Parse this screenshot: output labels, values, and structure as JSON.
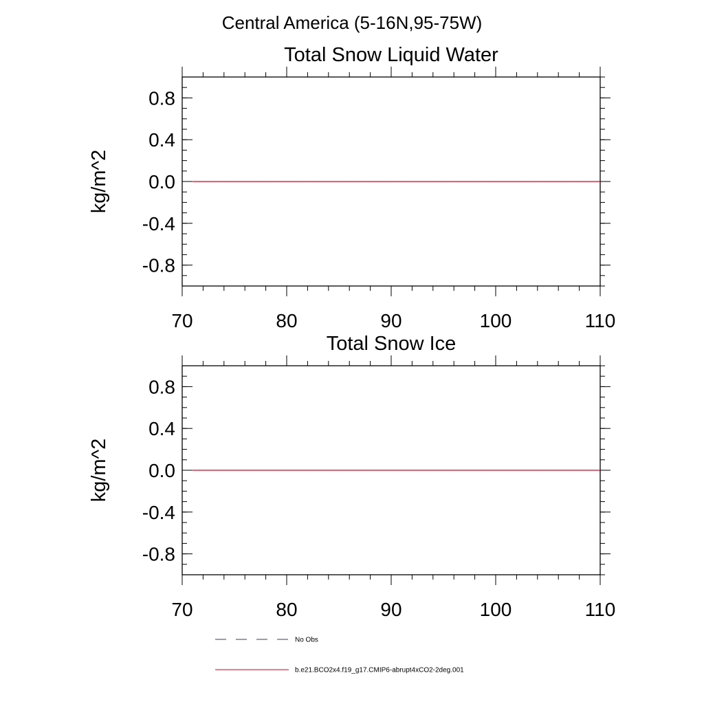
{
  "figure": {
    "title": "Central America (5-16N,95-75W)"
  },
  "chart_data": [
    {
      "type": "line",
      "title": "Total Snow Liquid Water",
      "xlabel": "",
      "ylabel": "kg/m^2",
      "xlim": [
        70,
        110
      ],
      "ylim": [
        -1.0,
        1.0
      ],
      "x_ticks": [
        70,
        80,
        90,
        100,
        110
      ],
      "x_tick_labels": [
        "70",
        "80",
        "90",
        "100",
        "110"
      ],
      "y_ticks": [
        0.8,
        0.4,
        0.0,
        -0.4,
        -0.8
      ],
      "y_tick_labels": [
        "0.8",
        "0.4",
        "0.0",
        "-0.4",
        "-0.8"
      ],
      "grid": false,
      "series": [
        {
          "name": "b.e21.BCO2x4.f19_g17.CMIP6-abrupt4xCO2-2deg.001",
          "color": "#e8001a",
          "x": [
            71,
            110
          ],
          "y": [
            0.0,
            0.0
          ]
        }
      ]
    },
    {
      "type": "line",
      "title": "Total Snow Ice",
      "xlabel": "",
      "ylabel": "kg/m^2",
      "xlim": [
        70,
        110
      ],
      "ylim": [
        -1.0,
        1.0
      ],
      "x_ticks": [
        70,
        80,
        90,
        100,
        110
      ],
      "x_tick_labels": [
        "70",
        "80",
        "90",
        "100",
        "110"
      ],
      "y_ticks": [
        0.8,
        0.4,
        0.0,
        -0.4,
        -0.8
      ],
      "y_tick_labels": [
        "0.8",
        "0.4",
        "0.0",
        "-0.4",
        "-0.8"
      ],
      "grid": false,
      "series": [
        {
          "name": "b.e21.BCO2x4.f19_g17.CMIP6-abrupt4xCO2-2deg.001",
          "color": "#e8001a",
          "x": [
            71,
            110
          ],
          "y": [
            0.0,
            0.0
          ]
        }
      ]
    }
  ],
  "legend": {
    "placement": "bottom-left",
    "entries": [
      {
        "label": "No Obs",
        "color": "#3a3a5a",
        "style": "dashed"
      },
      {
        "label": "b.e21.BCO2x4.f19_g17.CMIP6-abrupt4xCO2-2deg.001",
        "color": "#e8001a",
        "style": "solid"
      }
    ]
  }
}
